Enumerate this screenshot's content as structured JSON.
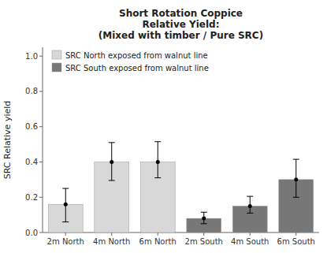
{
  "chart_data": {
    "type": "bar",
    "title": "Short Rotation Coppice\nRelative Yield:\n(Mixed with timber / Pure SRC)",
    "ylabel": "SRC Relative yield",
    "categories": [
      "2m North",
      "4m North",
      "6m North",
      "2m South",
      "4m South",
      "6m South"
    ],
    "series": [
      {
        "name": "SRC North exposed from walnut line",
        "color": "#d8d8d8",
        "values": [
          0.16,
          0.4,
          0.4,
          null,
          null,
          null
        ],
        "errors_lower": [
          0.1,
          0.105,
          0.09,
          null,
          null,
          null
        ],
        "errors_upper": [
          0.09,
          0.11,
          0.115,
          null,
          null,
          null
        ]
      },
      {
        "name": "SRC South exposed from walnut line",
        "color": "#777777",
        "values": [
          null,
          null,
          null,
          0.08,
          0.15,
          0.3
        ],
        "errors_lower": [
          null,
          null,
          null,
          0.03,
          0.04,
          0.1
        ],
        "errors_upper": [
          null,
          null,
          null,
          0.035,
          0.055,
          0.115
        ]
      }
    ],
    "ylim": [
      0.0,
      1.05
    ],
    "yticks": [
      {
        "value": 0,
        "label": "0.0"
      },
      0.2,
      0.4,
      0.6,
      0.8,
      {
        "value": 1,
        "label": "1.0"
      }
    ],
    "grid": false,
    "legend": "upper left"
  }
}
